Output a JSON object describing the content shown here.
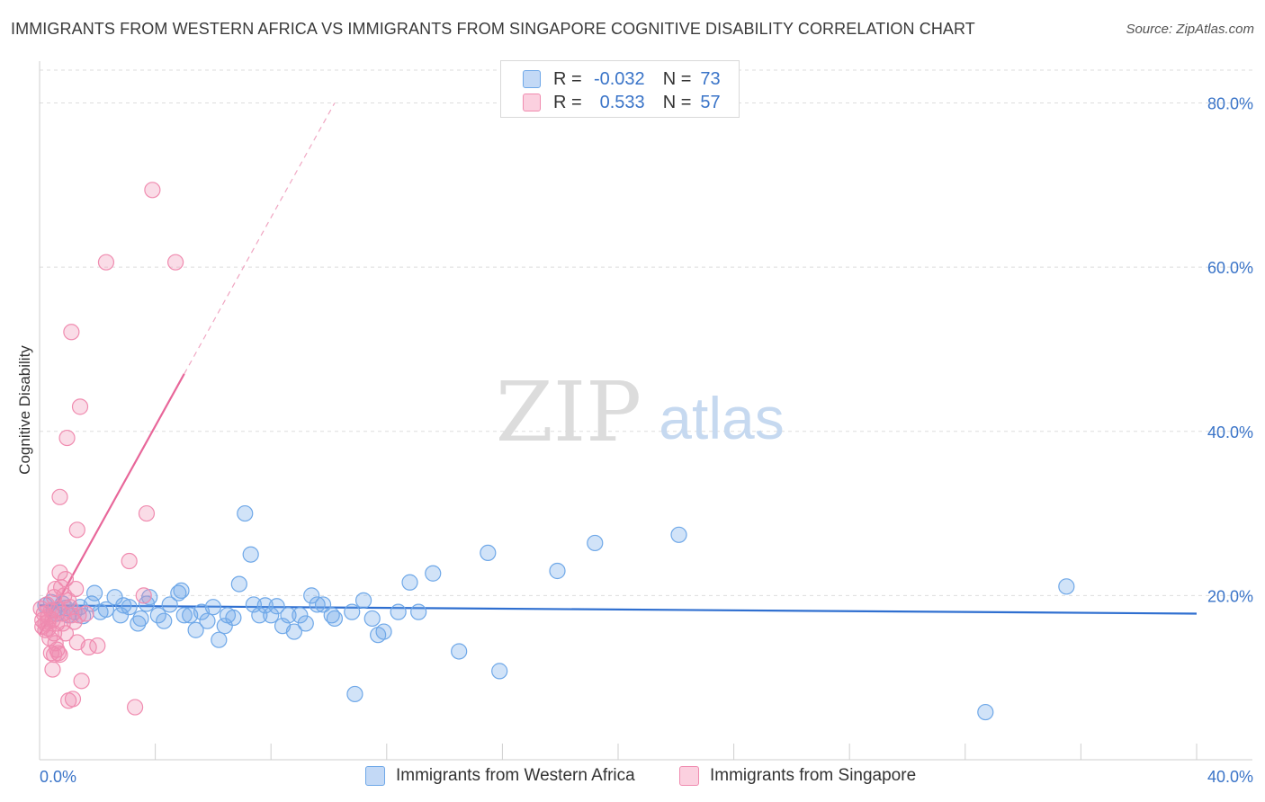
{
  "title": "IMMIGRANTS FROM WESTERN AFRICA VS IMMIGRANTS FROM SINGAPORE COGNITIVE DISABILITY CORRELATION CHART",
  "source": "Source: ZipAtlas.com",
  "watermark": {
    "zip": "ZIP",
    "atlas": "atlas"
  },
  "legend": {
    "rows": [
      {
        "r_label": "R =",
        "r_value": "-0.032",
        "n_label": "N =",
        "n_value": "73"
      },
      {
        "r_label": "R =",
        "r_value": "0.533",
        "n_label": "N =",
        "n_value": "57"
      }
    ]
  },
  "chart_data": {
    "type": "scatter",
    "title": "IMMIGRANTS FROM WESTERN AFRICA VS IMMIGRANTS FROM SINGAPORE COGNITIVE DISABILITY CORRELATION CHART",
    "xlabel": "",
    "ylabel": "Cognitive Disability",
    "xlim": [
      0,
      40
    ],
    "ylim": [
      0,
      84
    ],
    "x_tick_labels": [
      "0.0%",
      "40.0%"
    ],
    "y_ticks": [
      20,
      40,
      60,
      80
    ],
    "y_tick_labels": [
      "20.0%",
      "40.0%",
      "60.0%",
      "80.0%"
    ],
    "grid": true,
    "colors": {
      "blue": "#6fa8e8",
      "blue_line": "#2f6fd0",
      "pink": "#f08cb0",
      "pink_line": "#e8679a",
      "tick_label": "#3a74c8"
    },
    "series": [
      {
        "name": "Immigrants from Western Africa",
        "color": "#6fa8e8",
        "trend": {
          "x0": 0,
          "y0": 18.8,
          "x1": 40,
          "y1": 17.8
        },
        "points": [
          [
            0.2,
            18.8
          ],
          [
            0.4,
            19.2
          ],
          [
            0.5,
            18.2
          ],
          [
            0.6,
            17.8
          ],
          [
            0.8,
            19.0
          ],
          [
            0.9,
            18.5
          ],
          [
            1.0,
            17.6
          ],
          [
            1.2,
            18.0
          ],
          [
            1.4,
            18.6
          ],
          [
            1.5,
            17.5
          ],
          [
            1.8,
            19.0
          ],
          [
            1.9,
            20.3
          ],
          [
            2.1,
            18.0
          ],
          [
            2.3,
            18.3
          ],
          [
            2.6,
            19.8
          ],
          [
            2.8,
            17.6
          ],
          [
            2.9,
            18.8
          ],
          [
            3.1,
            18.6
          ],
          [
            3.4,
            16.6
          ],
          [
            3.5,
            17.2
          ],
          [
            3.7,
            19.0
          ],
          [
            3.8,
            19.8
          ],
          [
            4.1,
            17.6
          ],
          [
            4.3,
            16.9
          ],
          [
            4.5,
            18.9
          ],
          [
            4.8,
            20.3
          ],
          [
            4.9,
            20.6
          ],
          [
            5.0,
            17.6
          ],
          [
            5.2,
            17.6
          ],
          [
            5.4,
            15.8
          ],
          [
            5.6,
            18.0
          ],
          [
            5.8,
            16.9
          ],
          [
            6.0,
            18.6
          ],
          [
            6.2,
            14.6
          ],
          [
            6.4,
            16.3
          ],
          [
            6.5,
            17.6
          ],
          [
            6.7,
            17.3
          ],
          [
            6.9,
            21.4
          ],
          [
            7.1,
            30.0
          ],
          [
            7.3,
            25.0
          ],
          [
            7.4,
            18.9
          ],
          [
            7.6,
            17.6
          ],
          [
            7.8,
            18.8
          ],
          [
            8.0,
            17.6
          ],
          [
            8.2,
            18.7
          ],
          [
            8.4,
            16.3
          ],
          [
            8.6,
            17.6
          ],
          [
            8.8,
            15.6
          ],
          [
            9.0,
            17.6
          ],
          [
            9.2,
            16.6
          ],
          [
            9.4,
            20.0
          ],
          [
            9.6,
            18.9
          ],
          [
            9.8,
            18.9
          ],
          [
            10.1,
            17.6
          ],
          [
            10.2,
            17.2
          ],
          [
            10.8,
            18.0
          ],
          [
            10.9,
            8.0
          ],
          [
            11.2,
            19.4
          ],
          [
            11.5,
            17.2
          ],
          [
            11.7,
            15.2
          ],
          [
            11.9,
            15.6
          ],
          [
            12.4,
            18.0
          ],
          [
            12.8,
            21.6
          ],
          [
            13.1,
            18.0
          ],
          [
            13.6,
            22.7
          ],
          [
            14.5,
            13.2
          ],
          [
            15.5,
            25.2
          ],
          [
            15.9,
            10.8
          ],
          [
            17.9,
            23.0
          ],
          [
            19.2,
            26.4
          ],
          [
            22.1,
            27.4
          ],
          [
            32.7,
            5.8
          ],
          [
            35.5,
            21.1
          ]
        ]
      },
      {
        "name": "Immigrants from Singapore",
        "color": "#f08cb0",
        "trend": {
          "x0": 0,
          "y0": 15.2,
          "x1": 5.0,
          "y1": 47.0,
          "dash_to_x": 10.2,
          "dash_to_y": 80.0
        },
        "points": [
          [
            0.05,
            18.4
          ],
          [
            0.1,
            17.0
          ],
          [
            0.1,
            16.2
          ],
          [
            0.15,
            17.8
          ],
          [
            0.2,
            16.6
          ],
          [
            0.2,
            15.8
          ],
          [
            0.25,
            18.9
          ],
          [
            0.3,
            17.4
          ],
          [
            0.3,
            16.0
          ],
          [
            0.35,
            14.8
          ],
          [
            0.4,
            18.2
          ],
          [
            0.4,
            13.0
          ],
          [
            0.45,
            17.0
          ],
          [
            0.45,
            11.0
          ],
          [
            0.5,
            19.8
          ],
          [
            0.5,
            15.4
          ],
          [
            0.55,
            20.8
          ],
          [
            0.55,
            14.2
          ],
          [
            0.6,
            16.6
          ],
          [
            0.6,
            13.4
          ],
          [
            0.65,
            18.4
          ],
          [
            0.7,
            32.0
          ],
          [
            0.7,
            22.8
          ],
          [
            0.7,
            12.8
          ],
          [
            0.75,
            21.0
          ],
          [
            0.8,
            17.8
          ],
          [
            0.8,
            16.6
          ],
          [
            0.85,
            20.0
          ],
          [
            0.9,
            22.0
          ],
          [
            0.9,
            15.4
          ],
          [
            0.95,
            39.2
          ],
          [
            1.0,
            7.2
          ],
          [
            1.0,
            19.4
          ],
          [
            1.05,
            18.6
          ],
          [
            1.1,
            17.6
          ],
          [
            1.1,
            52.1
          ],
          [
            1.15,
            7.4
          ],
          [
            1.2,
            16.8
          ],
          [
            1.25,
            20.8
          ],
          [
            1.3,
            28.0
          ],
          [
            1.3,
            14.3
          ],
          [
            1.35,
            17.6
          ],
          [
            1.4,
            43.0
          ],
          [
            1.45,
            9.6
          ],
          [
            1.6,
            17.8
          ],
          [
            1.7,
            13.7
          ],
          [
            2.0,
            13.9
          ],
          [
            2.3,
            60.6
          ],
          [
            3.1,
            24.2
          ],
          [
            3.3,
            6.4
          ],
          [
            3.6,
            20.0
          ],
          [
            3.7,
            30.0
          ],
          [
            3.9,
            69.4
          ],
          [
            4.7,
            60.6
          ],
          [
            0.5,
            12.8
          ],
          [
            0.65,
            13.0
          ],
          [
            0.3,
            16.8
          ]
        ]
      }
    ]
  }
}
